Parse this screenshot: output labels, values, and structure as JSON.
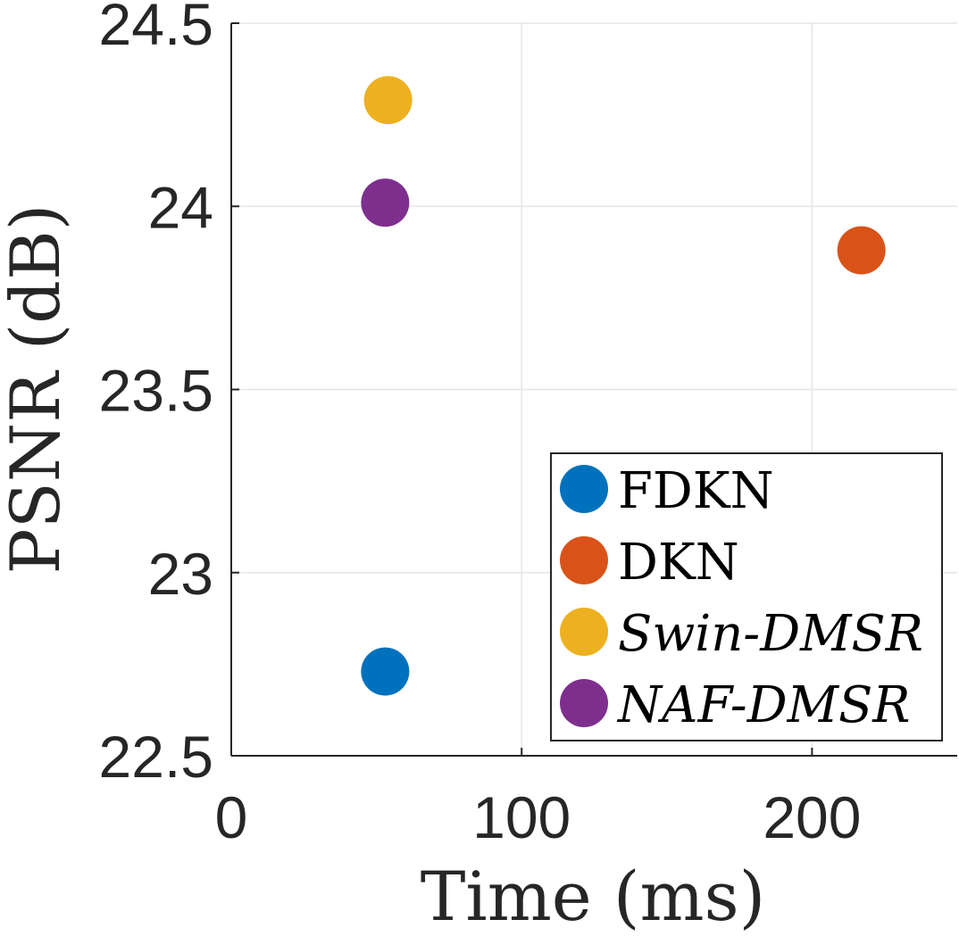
{
  "chart_data": {
    "type": "scatter",
    "title": "",
    "xlabel": "Time (ms)",
    "ylabel": "PSNR (dB)",
    "xlim": [
      0,
      250
    ],
    "ylim": [
      22.5,
      24.5
    ],
    "xticks": [
      0,
      100,
      200
    ],
    "xtick_labels": [
      "0",
      "100",
      "200"
    ],
    "yticks": [
      22.5,
      23,
      23.5,
      24,
      24.5
    ],
    "ytick_labels": [
      "22.5",
      "23",
      "23.5",
      "24",
      "24.5"
    ],
    "grid": true,
    "legend_position": "bottom-right",
    "series": [
      {
        "name": "FDKN",
        "italic": false,
        "color": "#0072BD",
        "x": [
          53
        ],
        "y": [
          22.73
        ]
      },
      {
        "name": "DKN",
        "italic": false,
        "color": "#D95319",
        "x": [
          217
        ],
        "y": [
          23.88
        ]
      },
      {
        "name": "Swin-DMSR",
        "italic": true,
        "color": "#EDB120",
        "x": [
          54
        ],
        "y": [
          24.29
        ]
      },
      {
        "name": "NAF-DMSR",
        "italic": true,
        "color": "#7E2F8E",
        "x": [
          53
        ],
        "y": [
          24.01
        ]
      }
    ]
  }
}
